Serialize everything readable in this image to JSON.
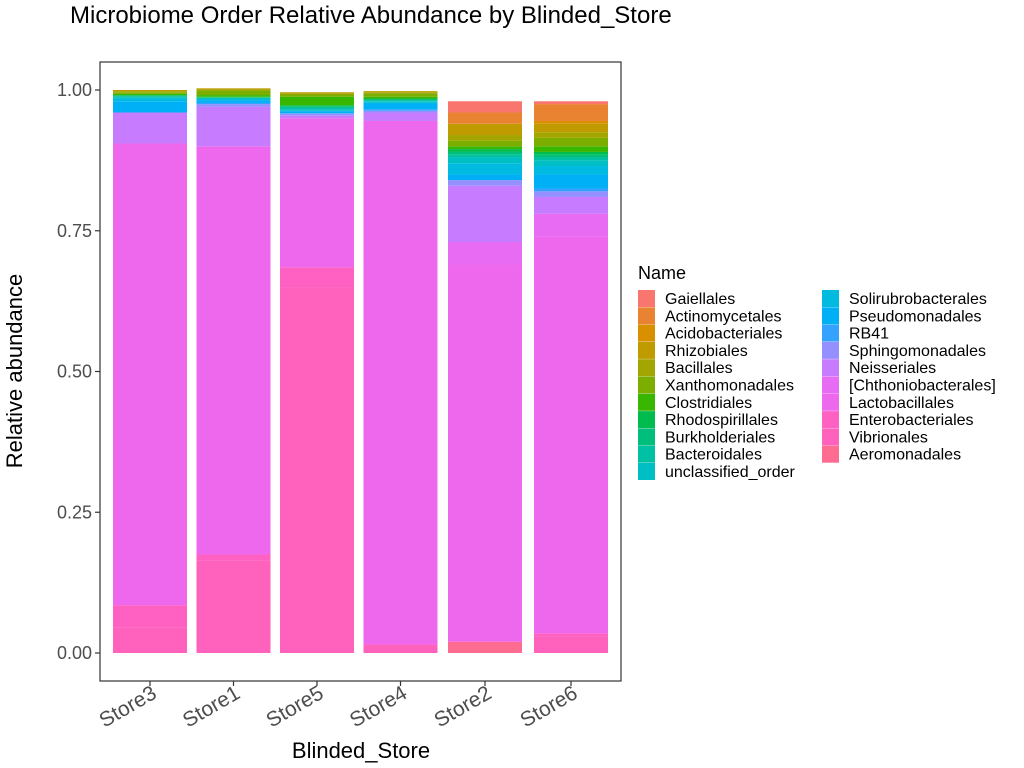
{
  "chart_data": {
    "type": "bar",
    "stacked": true,
    "title": "Microbiome Order Relative Abundance by Blinded_Store",
    "xlabel": "Blinded_Store",
    "ylabel": "Relative abundance",
    "ylim": [
      0,
      1
    ],
    "yticks": [
      "0.00",
      "0.25",
      "0.50",
      "0.75",
      "1.00"
    ],
    "grid": false,
    "legend_position": "right",
    "legend_title": "Name",
    "categories": [
      "Store3",
      "Store1",
      "Store5",
      "Store4",
      "Store2",
      "Store6"
    ],
    "series": [
      {
        "name": "Gaiellales",
        "color": "#F8766D",
        "values": [
          0,
          0,
          0,
          0,
          0.02,
          0.005
        ]
      },
      {
        "name": "Actinomycetales",
        "color": "#EA8331",
        "values": [
          0,
          0,
          0,
          0,
          0.02,
          0.03
        ]
      },
      {
        "name": "Acidobacteriales",
        "color": "#D89000",
        "values": [
          0,
          0,
          0,
          0,
          0.0,
          0.005
        ]
      },
      {
        "name": "Rhizobiales",
        "color": "#C09B00",
        "values": [
          0.002,
          0.002,
          0.002,
          0.002,
          0.02,
          0.015
        ]
      },
      {
        "name": "Bacillales",
        "color": "#A3A500",
        "values": [
          0.002,
          0.002,
          0.002,
          0.002,
          0.01,
          0.01
        ]
      },
      {
        "name": "Xanthomonadales",
        "color": "#7CAE00",
        "values": [
          0.003,
          0.008,
          0.004,
          0.006,
          0.01,
          0.015
        ]
      },
      {
        "name": "Clostridiales",
        "color": "#39B600",
        "values": [
          0.002,
          0.003,
          0.015,
          0.003,
          0.005,
          0.01
        ]
      },
      {
        "name": "Rhodospirillales",
        "color": "#00BB4E",
        "values": [
          0.001,
          0.001,
          0.002,
          0.002,
          0.005,
          0.005
        ]
      },
      {
        "name": "Burkholderiales",
        "color": "#00BF7D",
        "values": [
          0.001,
          0.001,
          0.002,
          0.001,
          0.005,
          0.005
        ]
      },
      {
        "name": "Bacteroidales",
        "color": "#00C1A3",
        "values": [
          0.002,
          0.001,
          0.003,
          0.002,
          0.005,
          0.005
        ]
      },
      {
        "name": "unclassified_order",
        "color": "#00BFC4",
        "values": [
          0.002,
          0.001,
          0.003,
          0.002,
          0.01,
          0.01
        ]
      },
      {
        "name": "Solirubrobacterales",
        "color": "#00BAE0",
        "values": [
          0.005,
          0.002,
          0.001,
          0.002,
          0.02,
          0.015
        ]
      },
      {
        "name": "Pseudomonadales",
        "color": "#00B0F6",
        "values": [
          0.02,
          0.005,
          0.003,
          0.01,
          0.01,
          0.025
        ]
      },
      {
        "name": "RB41",
        "color": "#35A2FF",
        "values": [
          0,
          0.002,
          0.001,
          0.003,
          0.0,
          0.005
        ]
      },
      {
        "name": "Sphingomonadales",
        "color": "#9590FF",
        "values": [
          0,
          0.005,
          0.003,
          0.003,
          0.01,
          0.01
        ]
      },
      {
        "name": "Neisseriales",
        "color": "#C77CFF",
        "values": [
          0.055,
          0.07,
          0.005,
          0.015,
          0.1,
          0.03
        ]
      },
      {
        "name": "[Chthoniobacterales]",
        "color": "#E76BF3",
        "values": [
          0.0,
          0.0,
          0.0,
          0.0,
          0.04,
          0.04
        ]
      },
      {
        "name": "Lactobacillales",
        "color": "#ED68ED",
        "values": [
          0.82,
          0.725,
          0.265,
          0.93,
          0.67,
          0.705
        ]
      },
      {
        "name": "Enterobacteriales",
        "color": "#FF61C3",
        "values": [
          0.04,
          0.01,
          0.035,
          0.0,
          0.0,
          0.005
        ]
      },
      {
        "name": "Vibrionales",
        "color": "#FF62BC",
        "values": [
          0.045,
          0.165,
          0.65,
          0.015,
          0.0,
          0.03
        ]
      },
      {
        "name": "Aeromonadales",
        "color": "#FF6C91",
        "values": [
          0,
          0,
          0,
          0,
          0.02,
          0.0
        ]
      }
    ]
  }
}
